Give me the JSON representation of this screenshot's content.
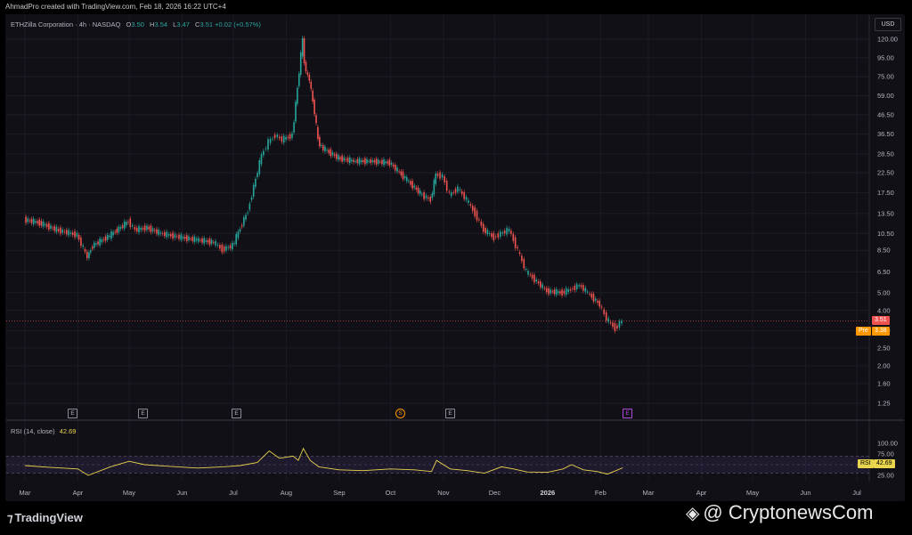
{
  "header": {
    "credit": "AhmadPro created with TradingView.com, Feb 18, 2026 16:22 UTC+4"
  },
  "legend": {
    "symbol": "ETHZilla Corporation · 4h · NASDAQ",
    "o_label": "O",
    "o": "3.50",
    "h_label": "H",
    "h": "3.54",
    "l_label": "L",
    "l": "3.47",
    "c_label": "C",
    "c": "3.51",
    "change": "+0.02 (+0.57%)"
  },
  "currency": "USD",
  "price_tags": {
    "last": "3.51",
    "pre_label": "Pre",
    "pre": "3.38",
    "rsi_label": "RSI",
    "rsi": "42.69"
  },
  "rsi_legend": {
    "label": "RSI (14, close)",
    "value": "42.69"
  },
  "events": [
    "E",
    "E",
    "E",
    "S",
    "E",
    "E"
  ],
  "footer": {
    "brand": "TradingView",
    "watermark": "@ CryptonewsCom"
  },
  "colors": {
    "up": "#26a69a",
    "down": "#ef5350",
    "rsi": "#e8d44d",
    "pre": "#ff9800",
    "background": "#121017"
  },
  "chart_data": [
    {
      "type": "line",
      "title": "ETHZilla Corporation · 4h · NASDAQ",
      "scale": "log",
      "y_ticks": [
        "120.00",
        "95.00",
        "75.00",
        "59.00",
        "46.50",
        "36.50",
        "28.50",
        "22.50",
        "17.50",
        "13.50",
        "10.50",
        "8.50",
        "6.50",
        "5.00",
        "4.00",
        "3.10",
        "2.50",
        "2.00",
        "1.60",
        "1.25"
      ],
      "x_ticks": [
        "Mar",
        "Apr",
        "May",
        "Jun",
        "Jul",
        "Aug",
        "Sep",
        "Oct",
        "Nov",
        "Dec",
        "2026",
        "Feb",
        "Mar",
        "Apr",
        "May",
        "Jun",
        "Jul"
      ],
      "x_range": [
        "2025-03",
        "2026-07"
      ],
      "series": [
        {
          "name": "",
          "x": [
            "2025-03-01",
            "2025-03-10",
            "2025-03-20",
            "2025-04-01",
            "2025-04-07",
            "2025-04-10",
            "2025-04-20",
            "2025-05-01",
            "2025-05-05",
            "2025-05-12",
            "2025-05-20",
            "2025-06-01",
            "2025-06-10",
            "2025-06-20",
            "2025-06-25",
            "2025-07-01",
            "2025-07-10",
            "2025-07-18",
            "2025-07-22",
            "2025-07-26",
            "2025-07-30",
            "2025-08-05",
            "2025-08-08",
            "2025-08-11",
            "2025-08-12",
            "2025-08-13",
            "2025-08-15",
            "2025-08-18",
            "2025-08-20",
            "2025-08-22",
            "2025-09-01",
            "2025-09-10",
            "2025-09-20",
            "2025-10-01",
            "2025-10-10",
            "2025-10-20",
            "2025-10-25",
            "2025-10-28",
            "2025-11-01",
            "2025-11-05",
            "2025-11-10",
            "2025-11-15",
            "2025-11-20",
            "2025-11-25",
            "2025-12-01",
            "2025-12-05",
            "2025-12-10",
            "2025-12-15",
            "2025-12-20",
            "2026-01-01",
            "2026-01-10",
            "2026-01-15",
            "2026-01-20",
            "2026-01-25",
            "2026-02-01",
            "2026-02-05",
            "2026-02-10",
            "2026-02-14"
          ],
          "values": [
            12.5,
            12.0,
            11.0,
            10.3,
            7.8,
            9.0,
            10.2,
            12.2,
            11.0,
            11.3,
            10.5,
            10.0,
            9.7,
            9.4,
            8.6,
            9.0,
            14.0,
            28.0,
            33.0,
            36.0,
            34.0,
            36.0,
            65.0,
            120.0,
            90.0,
            80.0,
            72.0,
            48.0,
            34.0,
            31.0,
            27.0,
            26.0,
            26.0,
            25.5,
            21.0,
            17.0,
            16.0,
            22.0,
            21.5,
            17.0,
            18.5,
            16.0,
            13.5,
            11.0,
            10.0,
            10.5,
            11.0,
            8.5,
            6.5,
            5.1,
            5.0,
            5.2,
            5.5,
            5.0,
            4.3,
            3.6,
            3.2,
            3.51
          ]
        }
      ],
      "last_price": 3.51,
      "pre_market": 3.38
    },
    {
      "type": "line",
      "title": "RSI (14, close)",
      "y_ticks": [
        "100.00",
        "75.00",
        "50.00",
        "25.00"
      ],
      "ylim": [
        0,
        100
      ],
      "bands": [
        30,
        50,
        70
      ],
      "series": [
        {
          "name": "",
          "x": [
            "2025-03-01",
            "2025-03-15",
            "2025-04-01",
            "2025-04-07",
            "2025-04-20",
            "2025-05-01",
            "2025-05-10",
            "2025-05-25",
            "2025-06-10",
            "2025-06-25",
            "2025-07-05",
            "2025-07-15",
            "2025-07-22",
            "2025-07-28",
            "2025-08-05",
            "2025-08-08",
            "2025-08-11",
            "2025-08-15",
            "2025-08-20",
            "2025-09-01",
            "2025-09-15",
            "2025-10-01",
            "2025-10-15",
            "2025-10-25",
            "2025-10-28",
            "2025-11-05",
            "2025-11-15",
            "2025-11-25",
            "2025-12-05",
            "2025-12-12",
            "2025-12-20",
            "2026-01-01",
            "2026-01-10",
            "2026-01-15",
            "2026-01-22",
            "2026-01-30",
            "2026-02-05",
            "2026-02-10",
            "2026-02-14"
          ],
          "values": [
            48,
            44,
            40,
            25,
            45,
            58,
            50,
            46,
            42,
            45,
            48,
            55,
            82,
            65,
            70,
            60,
            88,
            60,
            45,
            38,
            36,
            40,
            38,
            34,
            60,
            40,
            36,
            30,
            45,
            40,
            33,
            32,
            40,
            50,
            38,
            34,
            28,
            36,
            42.69
          ]
        }
      ]
    }
  ]
}
